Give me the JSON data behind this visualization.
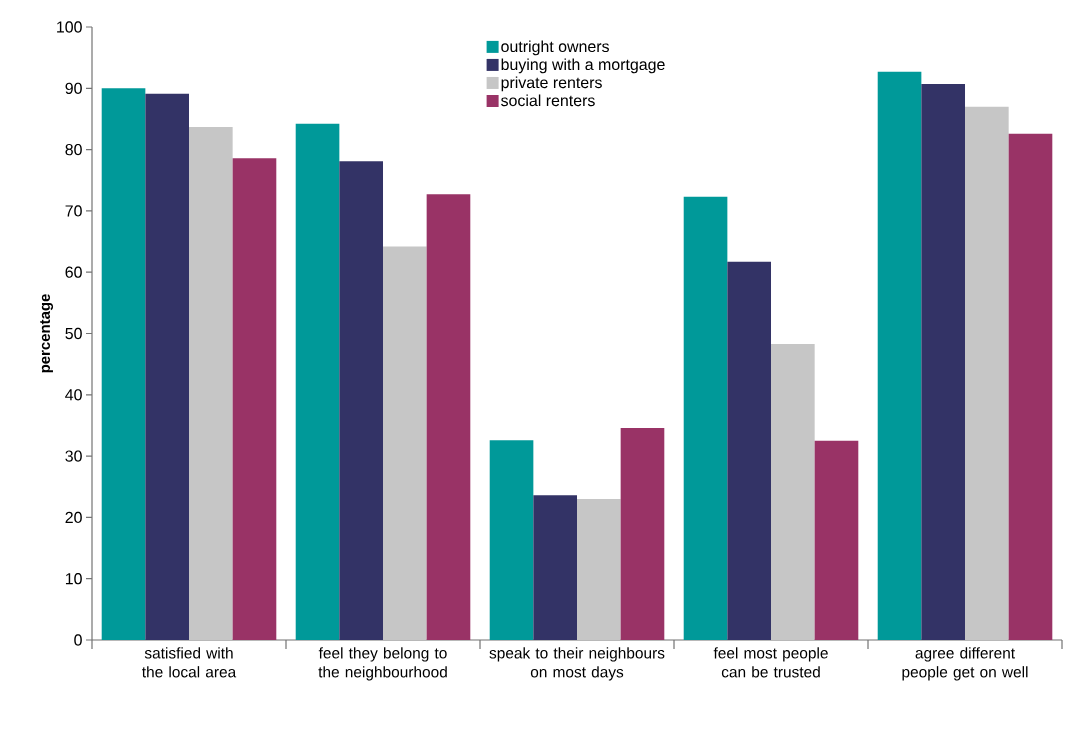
{
  "chart_data": {
    "type": "bar",
    "ylabel": "percentage",
    "categories": [
      "satisfied with the local area",
      "feel they belong to the neighbourhood",
      "speak to their neighbours on most days",
      "feel most people can be trusted",
      "agree different people get on well"
    ],
    "series": [
      {
        "name": "outright owners",
        "color": "#009999",
        "values": [
          90.0,
          84.2,
          32.6,
          72.3,
          92.7
        ]
      },
      {
        "name": "buying with a mortgage",
        "color": "#333366",
        "values": [
          89.1,
          78.1,
          23.6,
          61.7,
          90.7
        ]
      },
      {
        "name": "private renters",
        "color": "#c6c6c6",
        "values": [
          83.7,
          64.2,
          23.0,
          48.3,
          87.0
        ]
      },
      {
        "name": "social renters",
        "color": "#993366",
        "values": [
          78.6,
          72.7,
          34.6,
          32.5,
          82.6
        ]
      }
    ],
    "ylim": [
      0,
      100
    ],
    "yticks": [
      0,
      10,
      20,
      30,
      40,
      50,
      60,
      70,
      80,
      90,
      100
    ],
    "grid": false,
    "legend": "top"
  }
}
